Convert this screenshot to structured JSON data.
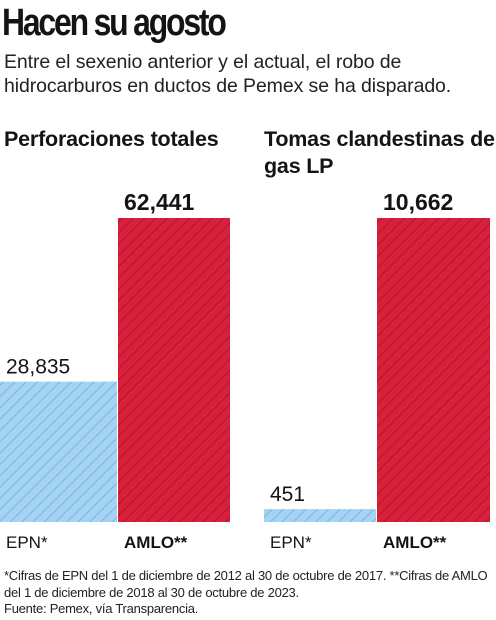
{
  "title": "Hacen su agosto",
  "subtitle": "Entre el sexenio anterior y el actual, el robo de hidrocarburos en ductos de Pemex se ha disparado.",
  "colors": {
    "epn": "#a6d3f2",
    "amlo": "#d8203a",
    "hatch_epn": "#5fb3e6",
    "hatch_amlo": "#a8142a"
  },
  "chart_data": [
    {
      "type": "bar",
      "title": "Perforaciones totales",
      "categories": [
        "EPN*",
        "AMLO**"
      ],
      "values": [
        28835,
        62441
      ],
      "value_labels": [
        "28,835",
        "62,441"
      ],
      "ylim": [
        0,
        62441
      ]
    },
    {
      "type": "bar",
      "title": "Tomas clandestinas de gas LP",
      "categories": [
        "EPN*",
        "AMLO**"
      ],
      "values": [
        451,
        10662
      ],
      "value_labels": [
        "451",
        "10,662"
      ],
      "ylim": [
        0,
        10662
      ]
    }
  ],
  "footnote": {
    "line1": "*Cifras de EPN del 1 de diciembre de 2012 al 30 de octubre de 2017. **Cifras de AMLO del 1 de diciembre de 2018 al 30 de octubre de 2023.",
    "line2": "Fuente: Pemex, vía Transparencia."
  }
}
